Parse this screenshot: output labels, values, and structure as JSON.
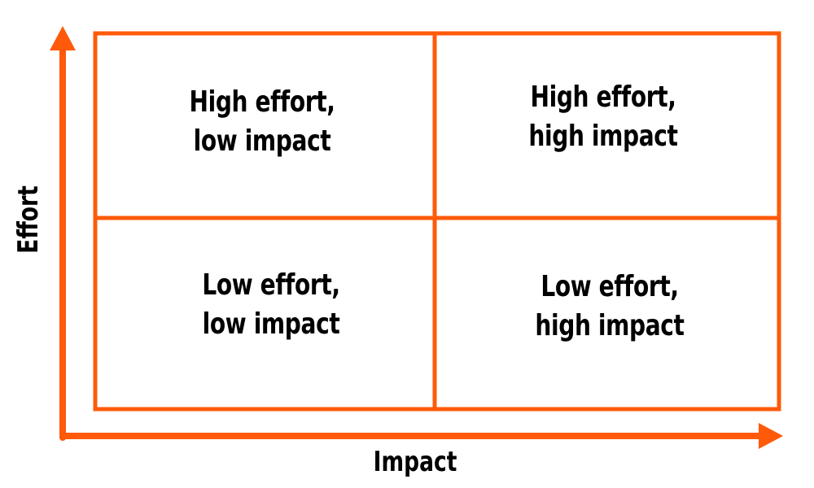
{
  "diagram": {
    "accent_color": "#ff5a0a",
    "axes": {
      "x_label": "Impact",
      "y_label": "Effort"
    },
    "quadrants": {
      "top_left": {
        "line1": "High effort,",
        "line2": "low impact"
      },
      "top_right": {
        "line1": "High effort,",
        "line2": "high impact"
      },
      "bottom_left": {
        "line1": "Low effort,",
        "line2": "low impact"
      },
      "bottom_right": {
        "line1": "Low effort,",
        "line2": "high impact"
      }
    }
  }
}
